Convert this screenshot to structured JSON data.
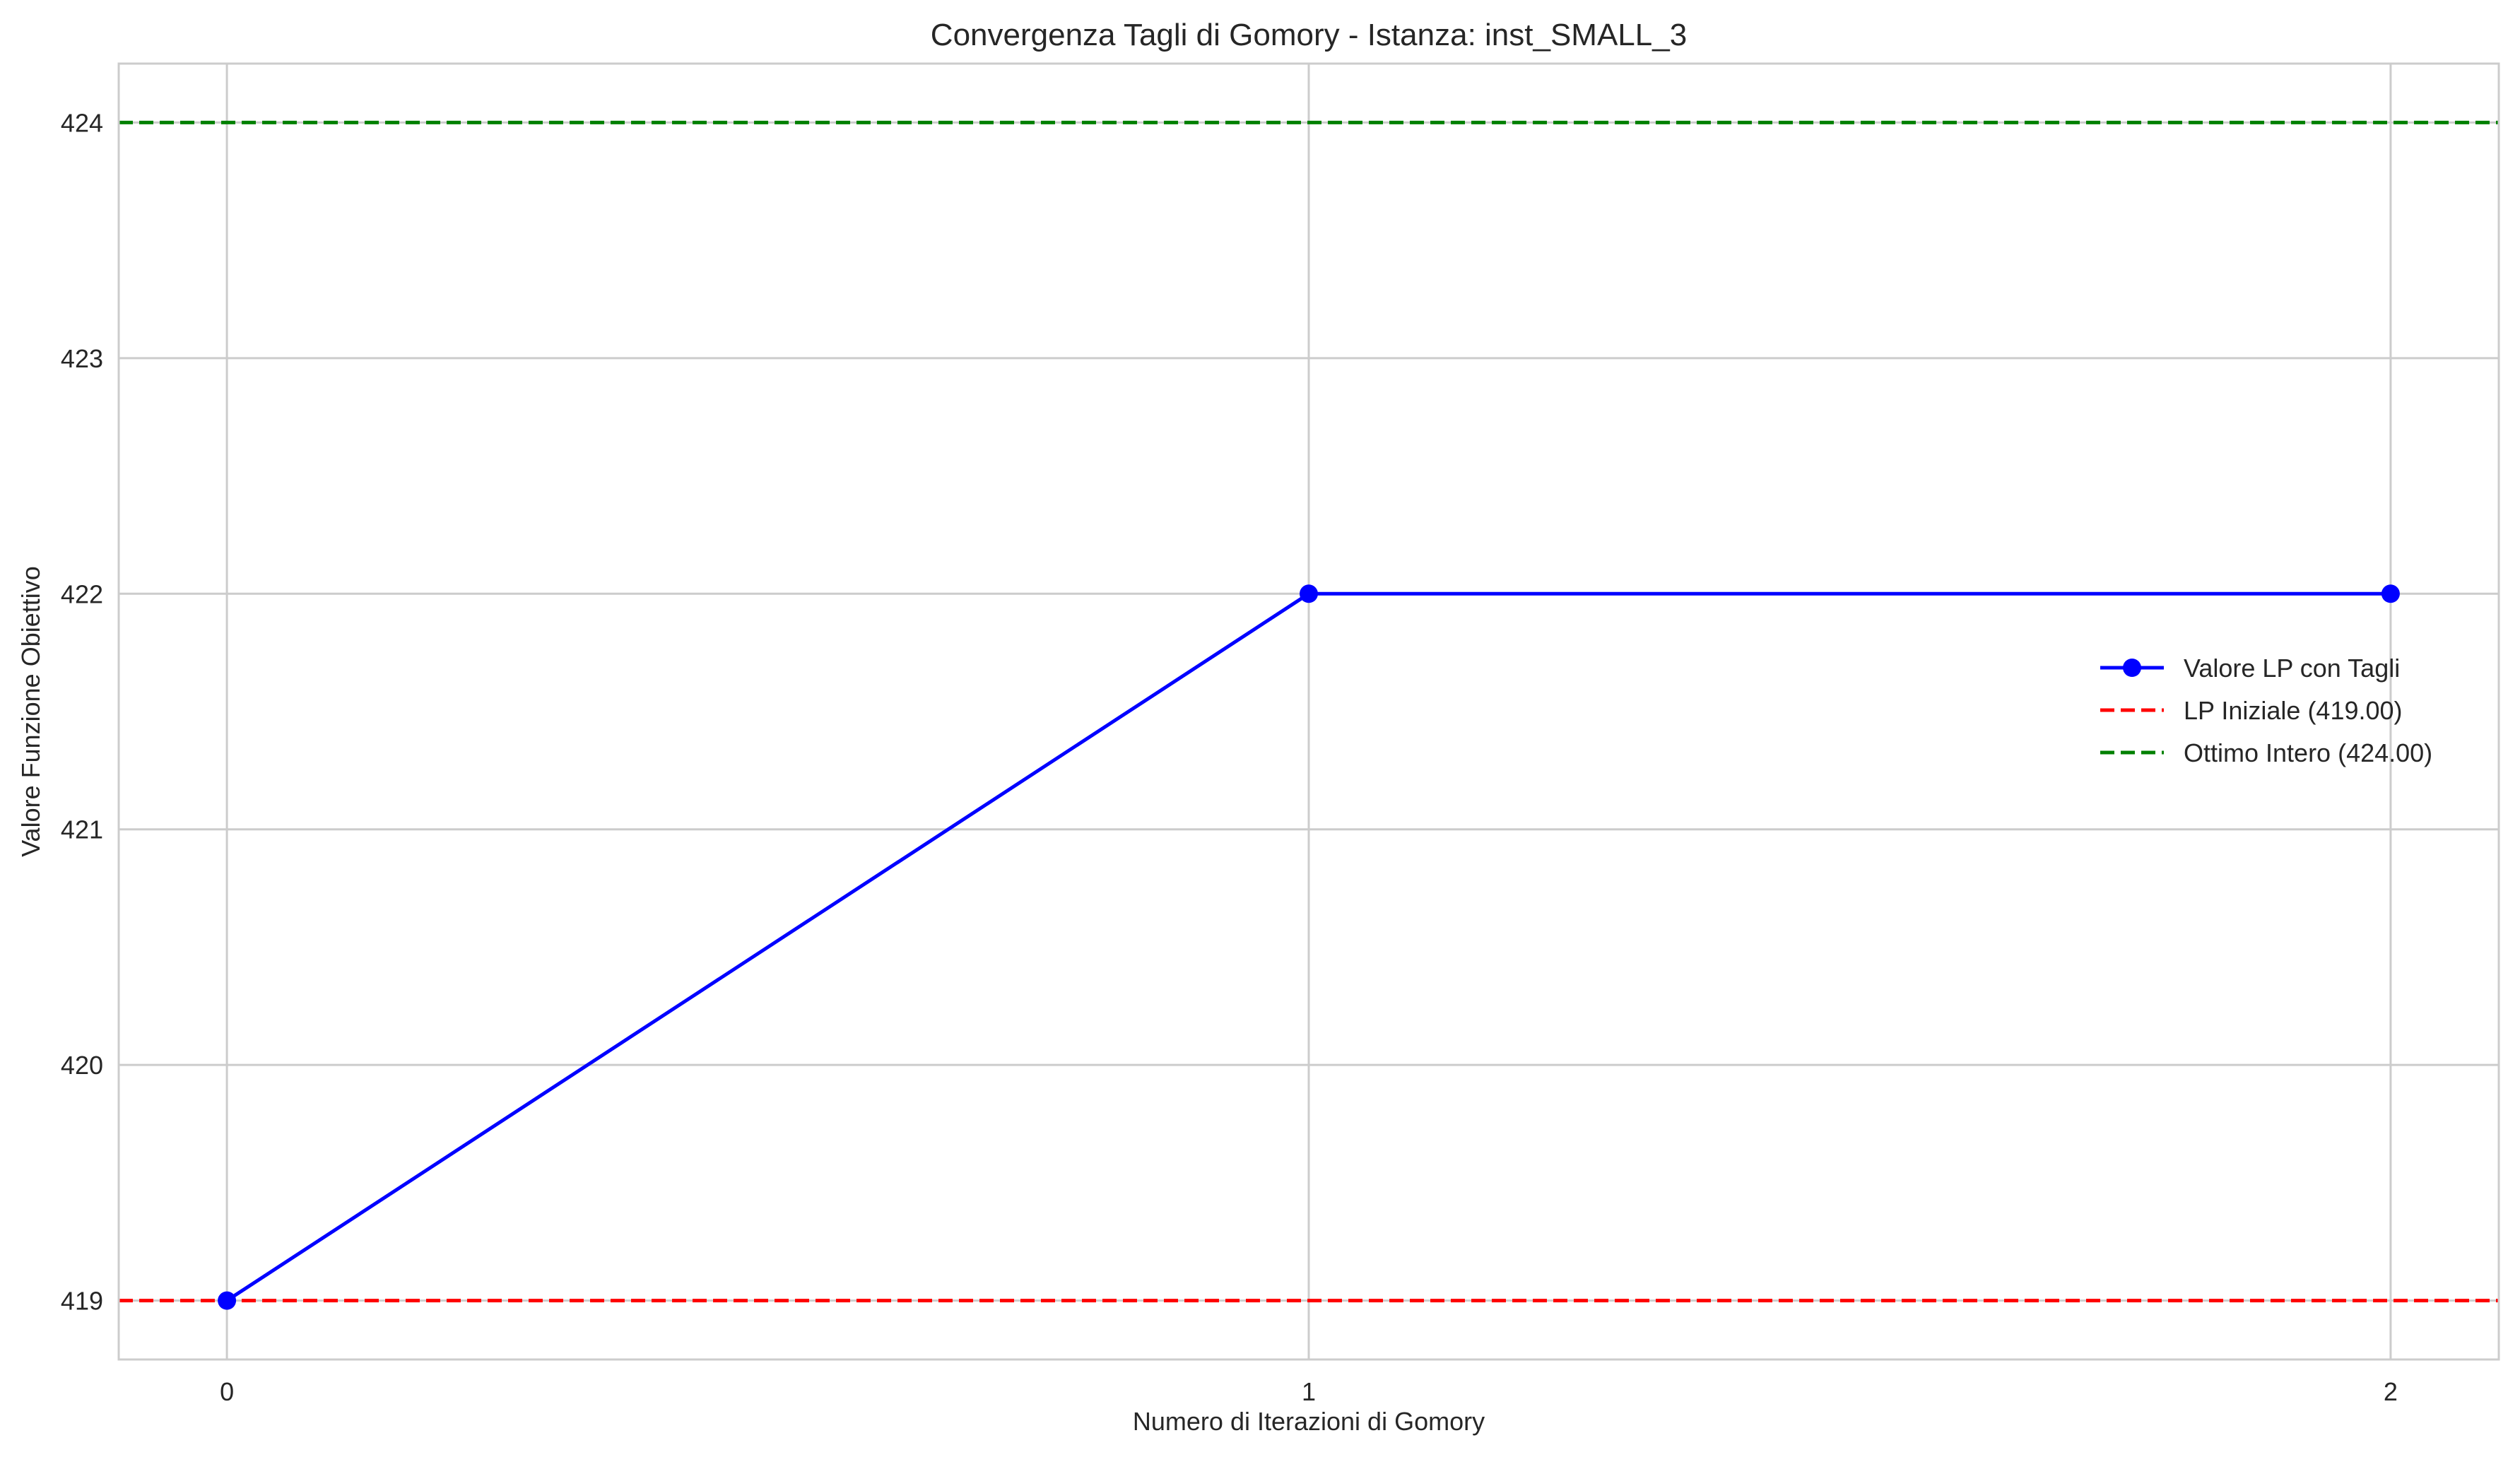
{
  "chart_data": {
    "type": "line",
    "title": "Convergenza Tagli di Gomory - Istanza: inst_SMALL_3",
    "xlabel": "Numero di Iterazioni di Gomory",
    "ylabel": "Valore Funzione Obiettivo",
    "xlim": [
      -0.1,
      2.1
    ],
    "ylim": [
      418.75,
      424.25
    ],
    "x_ticks": [
      0,
      1,
      2
    ],
    "y_ticks": [
      419,
      420,
      421,
      422,
      423,
      424
    ],
    "grid": true,
    "legend_position": "center-right",
    "series": [
      {
        "name": "Valore LP con Tagli",
        "x": [
          0,
          1,
          2
        ],
        "y": [
          419,
          422,
          422
        ],
        "color": "#0000ff",
        "style": "solid",
        "marker": "circle"
      }
    ],
    "reference_lines": [
      {
        "name": "LP Iniziale (419.00)",
        "y": 419.0,
        "color": "#ff0000",
        "style": "dashed"
      },
      {
        "name": "Ottimo Intero (424.00)",
        "y": 424.0,
        "color": "#008000",
        "style": "dashed"
      }
    ]
  }
}
